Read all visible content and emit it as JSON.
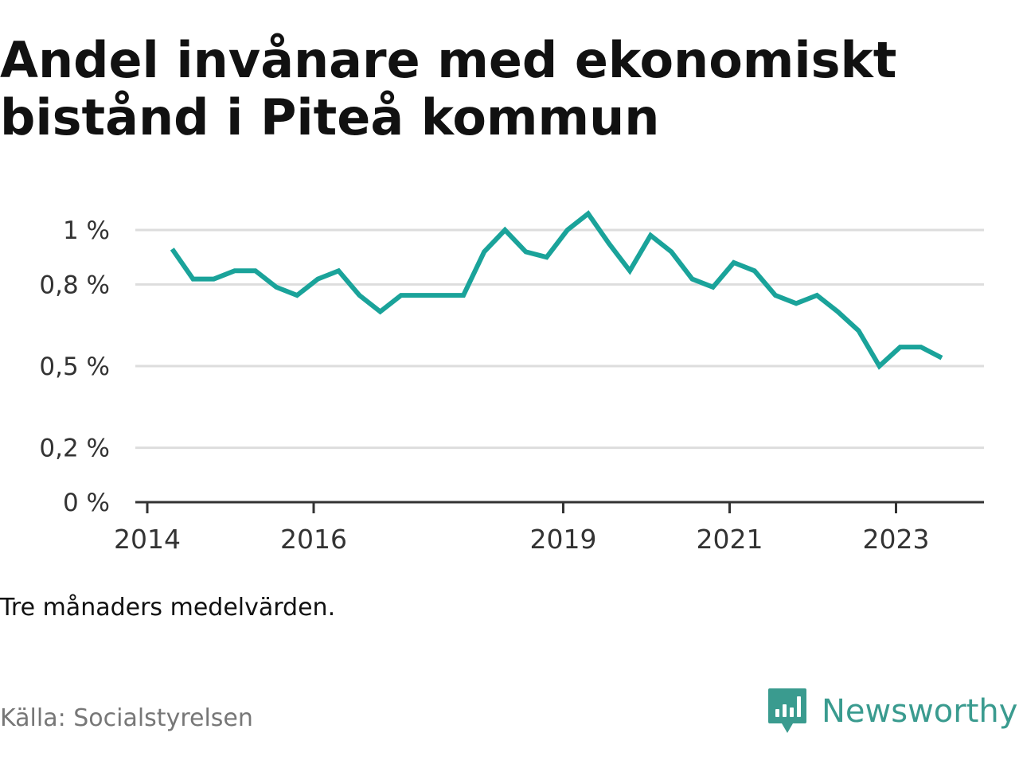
{
  "title_lines": [
    "Andel invånare med ekonomiskt",
    "bistånd i Piteå kommun"
  ],
  "note": "Tre månaders medelvärden.",
  "source": "Källa: Socialstyrelsen",
  "brand": {
    "name": "Newsworthy",
    "icon": "newsworthy-logo-icon",
    "color": "#3a9b8f"
  },
  "chart_data": {
    "type": "line",
    "title": "Andel invånare med ekonomiskt bistånd i Piteå kommun",
    "xlabel": "",
    "ylabel": "",
    "ylim": [
      0,
      1.0
    ],
    "yticks": [
      0,
      0.2,
      0.5,
      0.8,
      1
    ],
    "ytick_labels": [
      "0 %",
      "0,2 %",
      "0,5 %",
      "0,8 %",
      "1 %"
    ],
    "xticks": [
      2014,
      2016,
      2019,
      2021,
      2023
    ],
    "xtick_labels": [
      "2014",
      "2016",
      "2019",
      "2021",
      "2023"
    ],
    "xlim": [
      2014.0,
      2024.0
    ],
    "grid": true,
    "line_color": "#1aa39a",
    "series": [
      {
        "name": "",
        "x": [
          2014.3,
          2014.55,
          2014.8,
          2015.05,
          2015.3,
          2015.55,
          2015.8,
          2016.05,
          2016.3,
          2016.55,
          2016.8,
          2017.05,
          2017.3,
          2017.55,
          2017.8,
          2018.05,
          2018.3,
          2018.55,
          2018.8,
          2019.05,
          2019.3,
          2019.55,
          2019.8,
          2020.05,
          2020.3,
          2020.55,
          2020.8,
          2021.05,
          2021.3,
          2021.55,
          2021.8,
          2022.05,
          2022.3,
          2022.55,
          2022.8,
          2023.05,
          2023.3,
          2023.55
        ],
        "y": [
          0.93,
          0.82,
          0.82,
          0.85,
          0.85,
          0.79,
          0.76,
          0.82,
          0.85,
          0.76,
          0.7,
          0.76,
          0.76,
          0.76,
          0.76,
          0.92,
          1.0,
          0.92,
          0.9,
          1.0,
          1.06,
          0.95,
          0.85,
          0.98,
          0.92,
          0.82,
          0.79,
          0.88,
          0.85,
          0.76,
          0.73,
          0.76,
          0.7,
          0.63,
          0.5,
          0.57,
          0.57,
          0.53
        ]
      }
    ]
  }
}
